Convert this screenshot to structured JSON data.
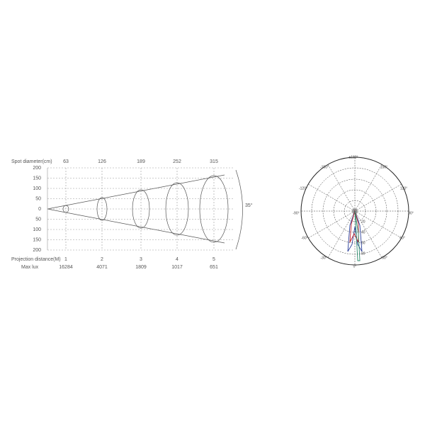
{
  "beam_diagram": {
    "spot_label": "Spot diameter(cm)",
    "spot_diameters": [
      63,
      126,
      189,
      252,
      315
    ],
    "y_labels": [
      200,
      150,
      100,
      50,
      0,
      50,
      100,
      150,
      200
    ],
    "distance_label": "Projection distance(M)",
    "distances": [
      1,
      2,
      3,
      4,
      5
    ],
    "lux_label": "Max lux",
    "max_lux": [
      16284,
      4071,
      1809,
      1017,
      651
    ],
    "beam_angle": "35°"
  },
  "polar_diagram": {
    "angle_labels": [
      "±180°",
      "-150°",
      "150°",
      "-120°",
      "120°",
      "-90°",
      "90°",
      "-60°",
      "60°",
      "-30°",
      "30°",
      "0°"
    ],
    "radial_labels": [
      20,
      40,
      60,
      80
    ]
  }
}
